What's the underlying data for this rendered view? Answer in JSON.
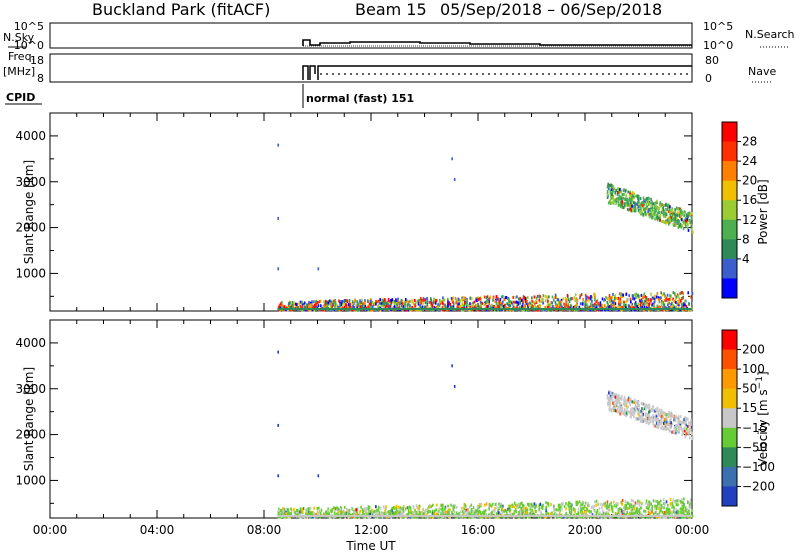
{
  "header": {
    "station": "Buckland Park (fitACF)",
    "beam": "Beam 15",
    "dates": "05/Sep/2018 – 06/Sep/2018"
  },
  "noise_panel": {
    "left_label": "N.Sky",
    "left_ticks": [
      "10^5",
      "10^0"
    ],
    "right_ticks": [
      "10^5",
      "10^0"
    ],
    "right_label": "N.Search"
  },
  "freq_panel": {
    "left_label_line1": "Freq.",
    "left_label_line2": "[MHz]",
    "left_ticks": [
      "18",
      "8"
    ],
    "right_ticks": [
      "80",
      "0"
    ],
    "right_label": "Nave"
  },
  "cpid": {
    "label": "CPID",
    "program": "normal (fast) 151"
  },
  "xaxis": {
    "label": "Time UT",
    "ticks": [
      "00:00",
      "04:00",
      "08:00",
      "12:00",
      "16:00",
      "20:00",
      "00:00"
    ]
  },
  "chart_data": [
    {
      "type": "heatmap",
      "name": "Power",
      "ylabel": "Slant Range [km]",
      "yticks": [
        "1000",
        "2000",
        "3000",
        "4000"
      ],
      "ylim": [
        180,
        4500
      ],
      "xlim": [
        0,
        24
      ],
      "colorbar_label": "Power [dB]",
      "colorbar_ticks": [
        "28",
        "24",
        "20",
        "16",
        "12",
        "8",
        "4"
      ],
      "colorbar_colors": [
        "#0000ff",
        "#3a5fcd",
        "#2e8b57",
        "#4caf50",
        "#9acd32",
        "#f0c000",
        "#ff7f00",
        "#ff3000",
        "#ff0000"
      ],
      "regions": [
        {
          "feature": "near-range echoes",
          "x": [
            8.5,
            24
          ],
          "y": [
            200,
            600
          ]
        },
        {
          "feature": "far-range echoes",
          "x": [
            20.8,
            24
          ],
          "y": [
            1900,
            2900
          ]
        }
      ]
    },
    {
      "type": "heatmap",
      "name": "Velocity",
      "ylabel": "Slant Range [km]",
      "yticks": [
        "1000",
        "2000",
        "3000",
        "4000"
      ],
      "ylim": [
        180,
        4500
      ],
      "xlim": [
        0,
        24
      ],
      "colorbar_label": "Velocity [m s^-1]",
      "colorbar_ticks": [
        "200",
        "100",
        "50",
        "15",
        "−15",
        "−50",
        "−100",
        "−200"
      ],
      "colorbar_colors": [
        "#2040c0",
        "#3a6fb0",
        "#2e8b57",
        "#66cc33",
        "#c8c8c8",
        "#f0c000",
        "#ff9900",
        "#ff5000",
        "#ff0000"
      ],
      "regions": [
        {
          "feature": "near-range echoes",
          "x": [
            8.5,
            24
          ],
          "y": [
            200,
            600
          ]
        },
        {
          "feature": "far-range echoes",
          "x": [
            20.8,
            24
          ],
          "y": [
            1900,
            2900
          ]
        }
      ]
    }
  ]
}
